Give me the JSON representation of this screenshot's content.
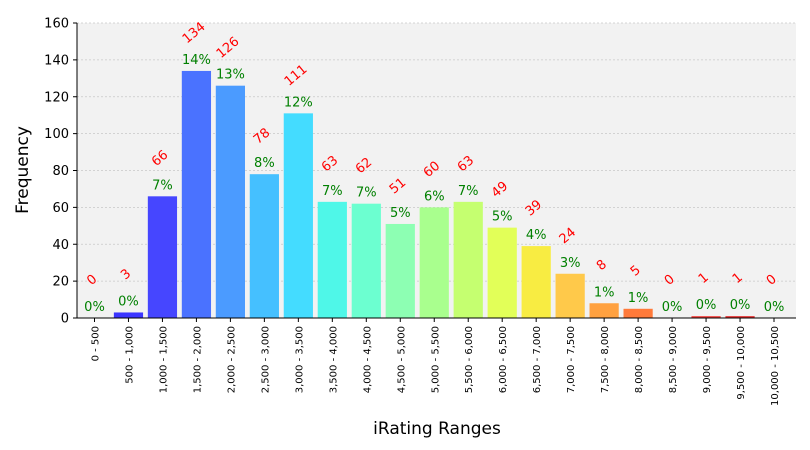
{
  "chart_data": {
    "type": "bar",
    "title": "",
    "xlabel": "iRating Ranges",
    "ylabel": "Frequency",
    "ylim": [
      0,
      160
    ],
    "yticks": [
      0,
      20,
      40,
      60,
      80,
      100,
      120,
      140,
      160
    ],
    "grid": true,
    "categories": [
      "0 - 500",
      "500 - 1,000",
      "1,000 - 1,500",
      "1,500 - 2,000",
      "2,000 - 2,500",
      "2,500 - 3,000",
      "3,000 - 3,500",
      "3,500 - 4,000",
      "4,000 - 4,500",
      "4,500 - 5,000",
      "5,000 - 5,500",
      "5,500 - 6,000",
      "6,000 - 6,500",
      "6,500 - 7,000",
      "7,000 - 7,500",
      "7,500 - 8,000",
      "8,000 - 8,500",
      "8,500 - 9,000",
      "9,000 - 9,500",
      "9,500 - 10,000",
      "10,000 - 10,500"
    ],
    "values": [
      0,
      3,
      66,
      134,
      126,
      78,
      111,
      63,
      62,
      51,
      60,
      63,
      49,
      39,
      24,
      8,
      5,
      0,
      1,
      1,
      0
    ],
    "count_labels": [
      "0",
      "3",
      "66",
      "134",
      "126",
      "78",
      "111",
      "63",
      "62",
      "51",
      "60",
      "63",
      "49",
      "39",
      "24",
      "8",
      "5",
      "0",
      "1",
      "1",
      "0"
    ],
    "percent_labels": [
      "0%",
      "0%",
      "7%",
      "14%",
      "13%",
      "8%",
      "12%",
      "7%",
      "7%",
      "5%",
      "6%",
      "7%",
      "5%",
      "4%",
      "3%",
      "1%",
      "1%",
      "0%",
      "0%",
      "0%",
      "0%"
    ],
    "bar_colors": [
      "#3a2bff",
      "#3b35ff",
      "#4646ff",
      "#4a72ff",
      "#4b9bff",
      "#45c0ff",
      "#44dcff",
      "#4ff7e8",
      "#6cffd0",
      "#8dffb3",
      "#a9ff8e",
      "#c5ff70",
      "#e2ff58",
      "#f8ec42",
      "#ffc94a",
      "#ffa140",
      "#ff7a3a",
      "#ff5a3a",
      "#f53d3a",
      "#e52a2a",
      "#d42020"
    ],
    "colors": {
      "count_label": "#ff0000",
      "percent_label": "#008000",
      "plot_background": "#f2f2f2",
      "grid": "#c8c8c8"
    }
  }
}
